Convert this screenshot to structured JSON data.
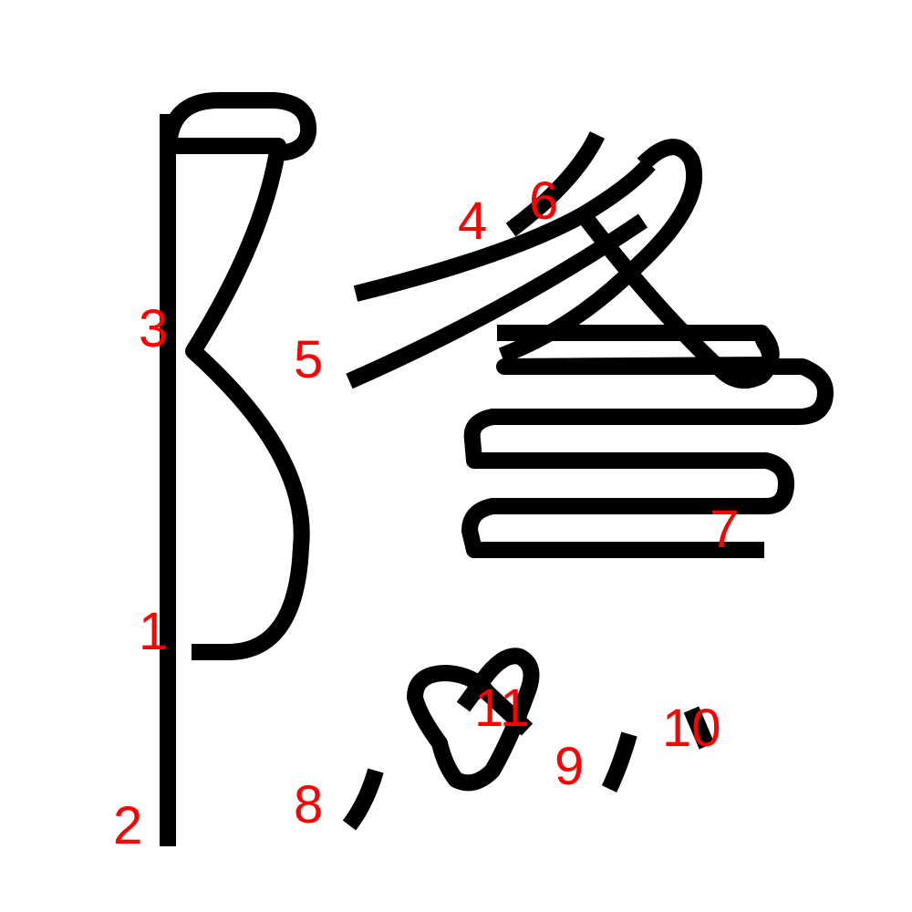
{
  "colors": {
    "background": "#ffffff",
    "stroke": "#000000",
    "label": "#ff0000"
  },
  "labels": {
    "l1": "1",
    "l2": "2",
    "l3": "3",
    "l4": "4",
    "l5": "5",
    "l6": "6",
    "l7": "7",
    "l8": "8",
    "l9": "9",
    "l10": "10",
    "l11": "11"
  }
}
